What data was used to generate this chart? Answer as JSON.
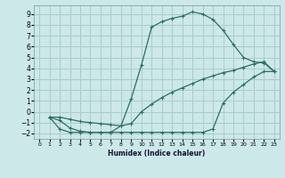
{
  "xlabel": "Humidex (Indice chaleur)",
  "bg_color": "#cce8e8",
  "grid_color": "#aacccc",
  "line_color": "#2d6e63",
  "xlim": [
    -0.5,
    23.5
  ],
  "ylim": [
    -2.5,
    9.8
  ],
  "xticks": [
    0,
    1,
    2,
    3,
    4,
    5,
    6,
    7,
    8,
    9,
    10,
    11,
    12,
    13,
    14,
    15,
    16,
    17,
    18,
    19,
    20,
    21,
    22,
    23
  ],
  "yticks": [
    -2,
    -1,
    0,
    1,
    2,
    3,
    4,
    5,
    6,
    7,
    8,
    9
  ],
  "line1_x": [
    1,
    2,
    3,
    4,
    5,
    6,
    7,
    8,
    9,
    10,
    11,
    12,
    13,
    14,
    15,
    16,
    17,
    18,
    19,
    20,
    21,
    22,
    23
  ],
  "line1_y": [
    -0.5,
    -0.8,
    -1.5,
    -1.8,
    -1.9,
    -1.9,
    -1.9,
    -1.3,
    1.2,
    4.3,
    7.8,
    8.3,
    8.6,
    8.8,
    9.2,
    9.0,
    8.5,
    7.5,
    6.2,
    5.0,
    4.6,
    4.5,
    3.7
  ],
  "line2_x": [
    1,
    2,
    3,
    4,
    5,
    6,
    7,
    8,
    9,
    10,
    11,
    12,
    13,
    14,
    15,
    16,
    17,
    18,
    19,
    20,
    21,
    22,
    23
  ],
  "line2_y": [
    -0.5,
    -1.6,
    -1.9,
    -1.9,
    -1.9,
    -1.9,
    -1.9,
    -1.9,
    -1.9,
    -1.9,
    -1.9,
    -1.9,
    -1.9,
    -1.9,
    -1.9,
    -1.9,
    -1.6,
    0.8,
    1.8,
    2.5,
    3.2,
    3.7,
    3.7
  ],
  "line3_x": [
    1,
    2,
    3,
    4,
    5,
    6,
    7,
    8,
    9,
    10,
    11,
    12,
    13,
    14,
    15,
    16,
    17,
    18,
    19,
    20,
    21,
    22,
    23
  ],
  "line3_y": [
    -0.5,
    -0.5,
    -0.7,
    -0.9,
    -1.0,
    -1.1,
    -1.2,
    -1.3,
    -1.1,
    0.0,
    0.7,
    1.3,
    1.8,
    2.2,
    2.6,
    3.0,
    3.3,
    3.6,
    3.8,
    4.1,
    4.4,
    4.6,
    3.7
  ]
}
